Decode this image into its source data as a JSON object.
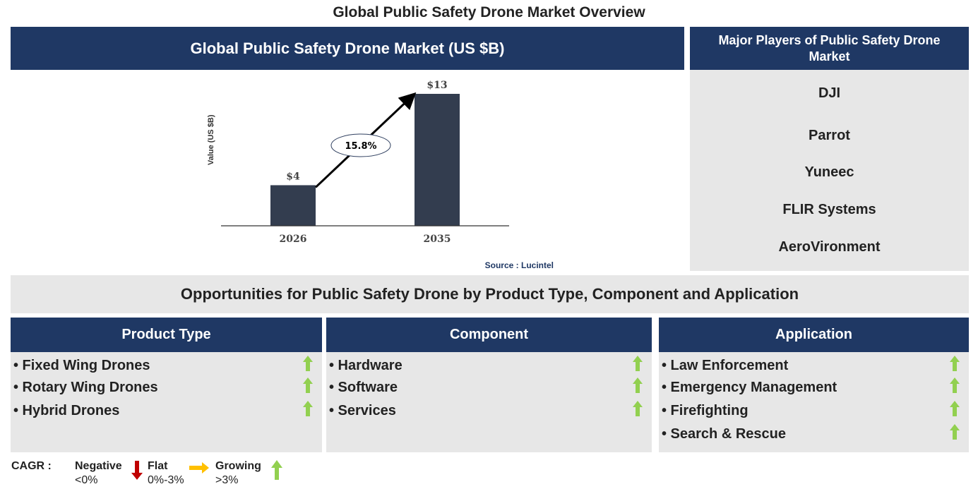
{
  "title": "Global Public Safety Drone Market Overview",
  "chart_panel": {
    "header": "Global Public Safety Drone Market (US $B)",
    "source": "Source : Lucintel"
  },
  "chart_data": {
    "type": "bar",
    "title": "Global Public Safety Drone Market (US $B)",
    "ylabel": "Value (US $B)",
    "categories": [
      "2026",
      "2035"
    ],
    "values": [
      4,
      13
    ],
    "data_labels": [
      "$4",
      "$13"
    ],
    "annotation": "15.8%",
    "bar_color": "#333d4f",
    "ylim": [
      0,
      13
    ],
    "grid": false
  },
  "players": {
    "header": "Major Players of Public Safety Drone Market",
    "items": [
      "DJI",
      "Parrot",
      "Yuneec",
      "FLIR Systems",
      "AeroVironment"
    ]
  },
  "opportunities": {
    "header": "Opportunities for Public Safety Drone by Product Type, Component and Application",
    "columns": [
      {
        "title": "Product Type",
        "items": [
          "• Fixed Wing Drones",
          "• Rotary Wing Drones",
          "• Hybrid Drones"
        ],
        "trend": "growing"
      },
      {
        "title": "Component",
        "items": [
          "• Hardware",
          "• Software",
          "• Services"
        ],
        "trend": "growing"
      },
      {
        "title": "Application",
        "items": [
          "• Law Enforcement",
          "• Emergency Management",
          "• Firefighting",
          "• Search & Rescue"
        ],
        "trend": "growing"
      }
    ]
  },
  "legend": {
    "label": "CAGR :",
    "negative": "Negative",
    "negative_range": "<0%",
    "flat": "Flat",
    "flat_range": "0%-3%",
    "growing": "Growing",
    "growing_range": ">3%"
  },
  "colors": {
    "navy": "#1f3864",
    "panel": "#e7e7e7",
    "up": "#92d050",
    "down": "#c00000",
    "flat": "#ffc000"
  }
}
